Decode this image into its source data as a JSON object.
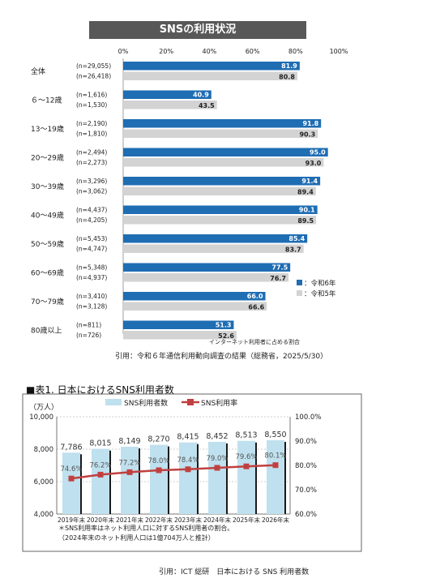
{
  "chart1": {
    "title": "SNSの利用状況",
    "note": "インターネット利用者に占める割合",
    "source": "引用：令和６年通信利用動向調査の結果（総務省，2025/5/30）",
    "chart_data": {
      "type": "bar",
      "orientation": "horizontal",
      "xlim": [
        0,
        100
      ],
      "ticks": [
        "0%",
        "20%",
        "40%",
        "60%",
        "80%",
        "100%"
      ],
      "categories": [
        "全体",
        "６〜12歳",
        "13〜19歳",
        "20〜29歳",
        "30〜39歳",
        "40〜49歳",
        "50〜59歳",
        "60〜69歳",
        "70〜79歳",
        "80歳以上"
      ],
      "series": [
        {
          "name": "：令和6年",
          "color": "#1f6db3",
          "n": [
            "(n=29,055)",
            "(n=1,616)",
            "(n=2,190)",
            "(n=2,494)",
            "(n=3,296)",
            "(n=4,437)",
            "(n=5,453)",
            "(n=5,348)",
            "(n=3,410)",
            "(n=811)"
          ],
          "values": [
            81.9,
            40.9,
            91.8,
            95.0,
            91.4,
            90.1,
            85.4,
            77.5,
            66.0,
            51.3
          ],
          "labels": [
            "81.9",
            "40.9",
            "91.8",
            "95.0",
            "91.4",
            "90.1",
            "85.4",
            "77.5",
            "66.0",
            "51.3"
          ]
        },
        {
          "name": "：令和5年",
          "color": "#d3d3d3",
          "n": [
            "(n=26,418)",
            "(n=1,530)",
            "(n=1,810)",
            "(n=2,273)",
            "(n=3,062)",
            "(n=4,205)",
            "(n=4,747)",
            "(n=4,937)",
            "(n=3,128)",
            "(n=726)"
          ],
          "values": [
            80.8,
            43.5,
            90.3,
            93.0,
            89.4,
            89.5,
            83.7,
            76.7,
            66.6,
            52.6
          ],
          "labels": [
            "80.8",
            "43.5",
            "90.3",
            "93.0",
            "89.4",
            "89.5",
            "83.7",
            "76.7",
            "66.6",
            "52.6"
          ]
        }
      ],
      "legend_position": "right"
    }
  },
  "chart2": {
    "section_title": "■表1. 日本におけるSNS利用者数",
    "unit": "（万人）",
    "footnote1": "＊SNS利用率はネット利用人口に対するSNS利用者の割合。",
    "footnote2": "（2024年末のネット利用人口は1億704万人と推計）",
    "source": "引用：ICT 総研　日本における SNS 利用者数",
    "chart_data": {
      "type": "bar",
      "categories": [
        "2019年末",
        "2020年末",
        "2021年末",
        "2022年末",
        "2023年末",
        "2024年末",
        "2025年末",
        "2026年末"
      ],
      "y_left": {
        "lim": [
          4000,
          10000
        ],
        "ticks": [
          "4,000",
          "6,000",
          "8,000",
          "10,000"
        ]
      },
      "y_right": {
        "lim": [
          60,
          100
        ],
        "ticks": [
          "60.0%",
          "70.0%",
          "80.0%",
          "90.0%",
          "100.0%"
        ]
      },
      "series": [
        {
          "name": "SNS利用者数",
          "type": "bar",
          "color": "#bfe0ee",
          "values": [
            7786,
            8015,
            8149,
            8270,
            8415,
            8452,
            8513,
            8550
          ],
          "labels": [
            "7,786",
            "8,015",
            "8,149",
            "8,270",
            "8,415",
            "8,452",
            "8,513",
            "8,550"
          ]
        },
        {
          "name": "SNS利用率",
          "type": "line",
          "color": "#c0403f",
          "values": [
            74.6,
            76.2,
            77.2,
            78.0,
            78.4,
            79.0,
            79.6,
            80.1
          ],
          "labels": [
            "74.6%",
            "76.2%",
            "77.2%",
            "78.0%",
            "78.4%",
            "79.0%",
            "79.6%",
            "80.1%"
          ]
        }
      ]
    }
  }
}
